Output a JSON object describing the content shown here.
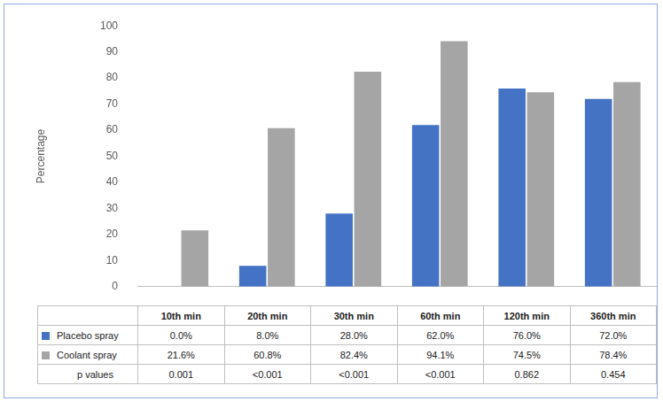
{
  "chart_data": {
    "type": "bar",
    "ylabel": "Percentage",
    "categories": [
      "10th min",
      "20th min",
      "30th min",
      "60th min",
      "120th min",
      "360th min"
    ],
    "series": [
      {
        "name": "Placebo spray",
        "color": "#4472c4",
        "values": [
          0.0,
          8.0,
          28.0,
          62.0,
          76.0,
          72.0
        ],
        "value_labels": [
          "0.0%",
          "8.0%",
          "28.0%",
          "62.0%",
          "76.0%",
          "72.0%"
        ]
      },
      {
        "name": "Coolant spray",
        "color": "#a5a5a5",
        "values": [
          21.6,
          60.8,
          82.4,
          94.1,
          74.5,
          78.4
        ],
        "value_labels": [
          "21.6%",
          "60.8%",
          "82.4%",
          "94.1%",
          "74.5%",
          "78.4%"
        ]
      }
    ],
    "p_values": {
      "label": "p values",
      "values": [
        "0.001",
        "<0.001",
        "<0.001",
        "<0.001",
        "0.862",
        "0.454"
      ]
    },
    "ylim": [
      0,
      100
    ],
    "yticks": [
      0,
      10,
      20,
      30,
      40,
      50,
      60,
      70,
      80,
      90,
      100
    ],
    "grid": false
  }
}
